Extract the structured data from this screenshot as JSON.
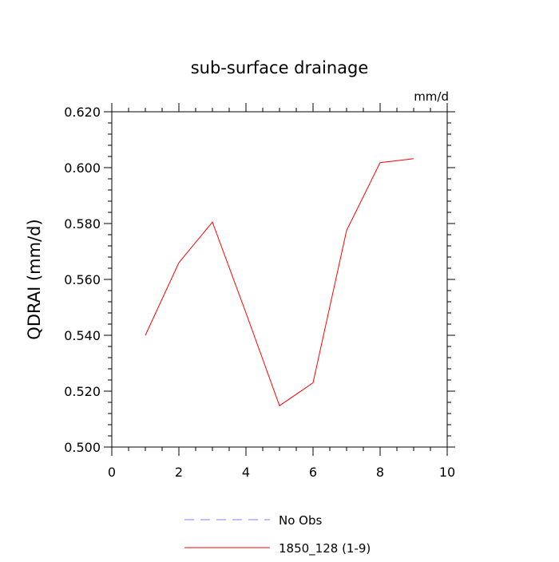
{
  "chart_data": {
    "type": "line",
    "title": "sub-surface drainage",
    "units_label": "mm/d",
    "ylabel": "QDRAI  (mm/d)",
    "xlabel": "",
    "xlim": [
      0,
      10
    ],
    "ylim": [
      0.5,
      0.62
    ],
    "x_ticks": [
      0,
      2,
      4,
      6,
      8,
      10
    ],
    "x_tick_labels": [
      "0",
      "2",
      "4",
      "6",
      "8",
      "10"
    ],
    "y_ticks": [
      0.5,
      0.52,
      0.54,
      0.56,
      0.58,
      0.6,
      0.62
    ],
    "y_tick_labels": [
      "0.500",
      "0.520",
      "0.540",
      "0.560",
      "0.580",
      "0.600",
      "0.620"
    ],
    "grid": false,
    "legend_position": "bottom",
    "series": [
      {
        "name": "1850_128 (1-9)",
        "color": "#ff0000",
        "dash": "solid",
        "x": [
          1,
          2,
          3,
          4,
          5,
          6,
          7,
          8,
          9
        ],
        "values": [
          0.54,
          0.566,
          0.5805,
          0.548,
          0.5148,
          0.523,
          0.5775,
          0.6018,
          0.6032
        ]
      }
    ],
    "legend": [
      {
        "label": "No Obs",
        "color": "#8080ff",
        "dash": "dashed"
      },
      {
        "label": "1850_128 (1-9)",
        "color": "#ff0000",
        "dash": "solid"
      }
    ]
  }
}
